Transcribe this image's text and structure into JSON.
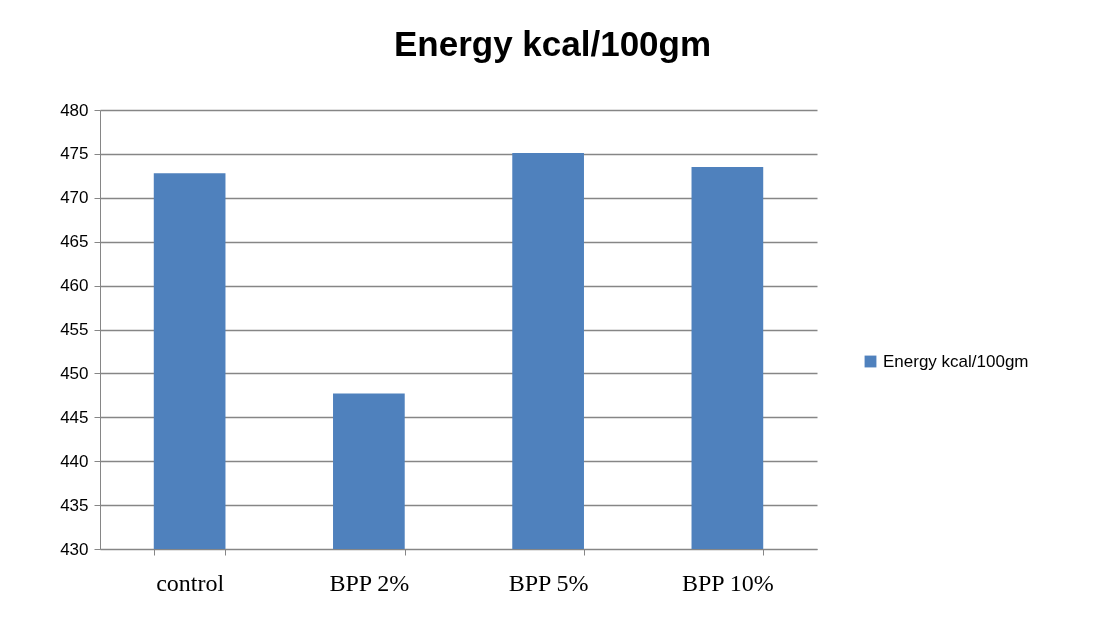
{
  "chart_data": {
    "type": "bar",
    "title": "Energy kcal/100gm",
    "categories": [
      "control",
      "BPP 2%",
      "BPP 5%",
      "BPP 10%"
    ],
    "series": [
      {
        "name": "Energy kcal/100gm",
        "color": "#4f81bd",
        "values": [
          472.8,
          447.7,
          475.1,
          473.5
        ]
      }
    ],
    "ylim": [
      430,
      480
    ],
    "yticks": [
      430,
      435,
      440,
      445,
      450,
      455,
      460,
      465,
      470,
      475,
      480
    ],
    "grid": "y",
    "legend": "right"
  }
}
